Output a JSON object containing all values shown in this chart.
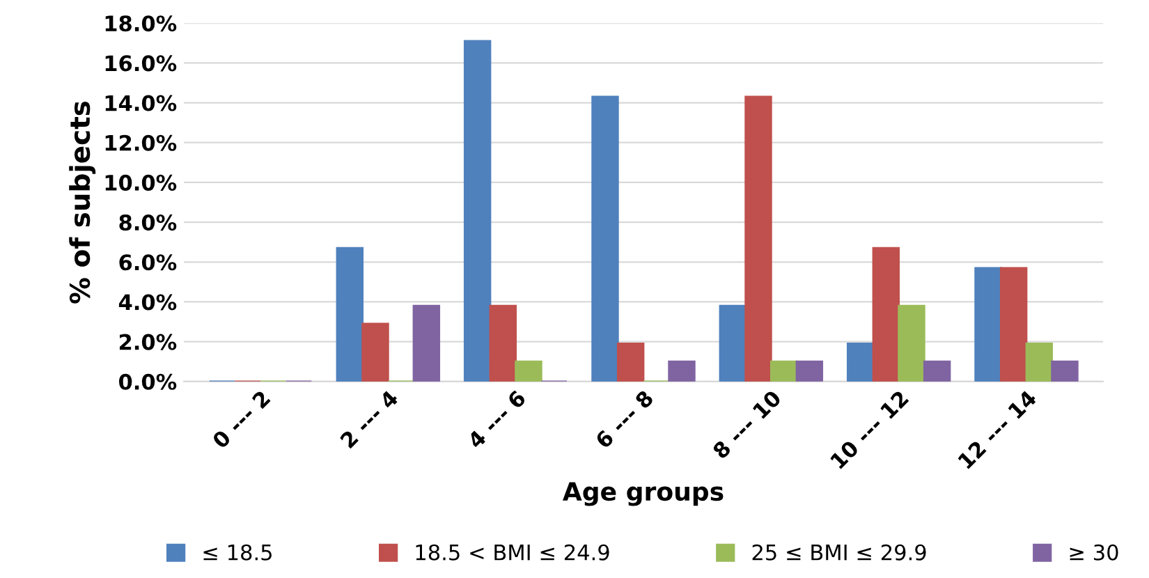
{
  "chart_data": {
    "type": "bar",
    "xlabel": "Age groups",
    "ylabel": "% of subjects",
    "categories": [
      "0 --- 2",
      "2 --- 4",
      "4 --- 6",
      "6 --- 8",
      "8 --- 10",
      "10 --- 12",
      "12 --- 14"
    ],
    "series": [
      {
        "name": "≤ 18.5",
        "color": "#4f81bd",
        "values": [
          0,
          6.7,
          17.1,
          14.3,
          3.8,
          1.9,
          5.7
        ]
      },
      {
        "name": "18.5 < BMI ≤ 24.9",
        "color": "#c0504d",
        "values": [
          0,
          2.9,
          3.8,
          1.9,
          14.3,
          6.7,
          5.7
        ]
      },
      {
        "name": "25 ≤ BMI ≤ 29.9",
        "color": "#9bbb59",
        "values": [
          0,
          0,
          1.0,
          0,
          1.0,
          3.8,
          1.9
        ]
      },
      {
        "name": "≥ 30",
        "color": "#8064a2",
        "values": [
          0,
          3.8,
          0,
          1.0,
          1.0,
          1.0,
          1.0
        ]
      }
    ],
    "ylim": [
      0,
      18
    ],
    "yticks": [
      {
        "value": 0,
        "label": "0.0%"
      },
      {
        "value": 2,
        "label": "2.0%"
      },
      {
        "value": 4,
        "label": "4.0%"
      },
      {
        "value": 6,
        "label": "6.0%"
      },
      {
        "value": 8,
        "label": "8.0%"
      },
      {
        "value": 10,
        "label": "10.0%"
      },
      {
        "value": 12,
        "label": "12.0%"
      },
      {
        "value": 14,
        "label": "14.0%"
      },
      {
        "value": 16,
        "label": "16.0%"
      },
      {
        "value": 18,
        "label": "18.0%"
      }
    ],
    "grid": "y",
    "legend": "bottom"
  }
}
